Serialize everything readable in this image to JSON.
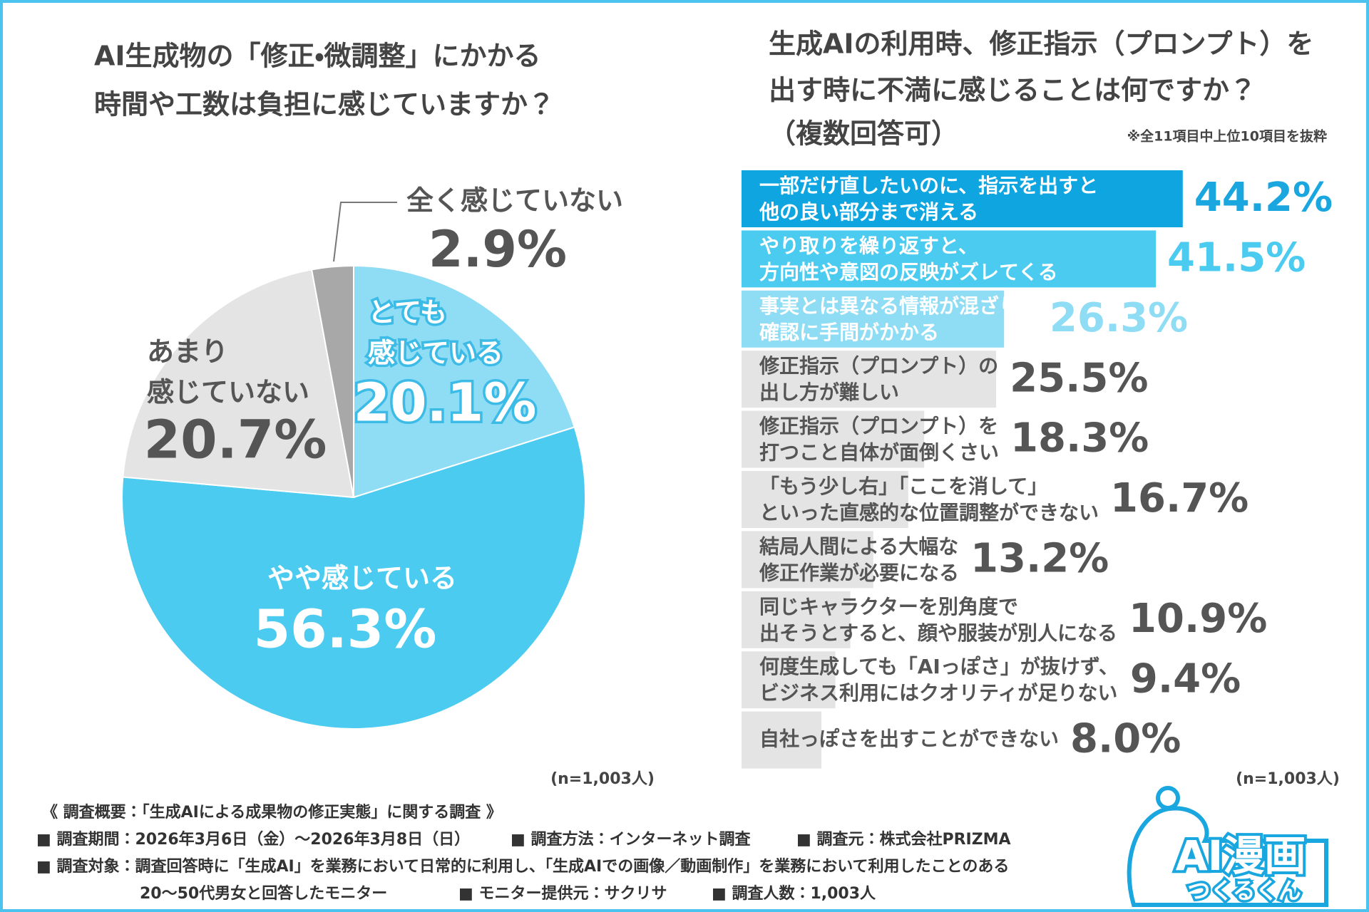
{
  "chart_data": [
    {
      "type": "pie",
      "title": [
        "AI生成物の「修正・微調整」にかかる",
        "時間や工数は負担に感じていますか？"
      ],
      "categories": [
        [
          "とても",
          "感じている"
        ],
        [
          "やや感じている"
        ],
        [
          "あまり",
          "感じていない"
        ],
        [
          "全く感じていない"
        ]
      ],
      "values": [
        20.1,
        56.3,
        20.7,
        2.9
      ],
      "value_labels": [
        "20.1%",
        "56.3%",
        "20.7%",
        "2.9%"
      ],
      "colors": [
        "#8fdcf5",
        "#4ccbf0",
        "#e4e4e4",
        "#a8a8a8"
      ],
      "label_colors": [
        "#ffffff",
        "#ffffff",
        "#555555",
        "#555555"
      ],
      "note": "(n=1,003人)"
    },
    {
      "type": "hbar",
      "title": [
        "生成AIの利用時、修正指示（プロンプト）を",
        "出す時に不満に感じることは何ですか？",
        "（複数回答可）"
      ],
      "subtitle": "※全11項目中上位10項目を抜粋",
      "categories": [
        [
          "一部だけ直したいのに、指示を出すと",
          "他の良い部分まで消える"
        ],
        [
          "やり取りを繰り返すと、",
          "方向性や意図の反映がズレてくる"
        ],
        [
          "事実とは異なる情報が混ざり、",
          "確認に手間がかかる"
        ],
        [
          "修正指示（プロンプト）の",
          "出し方が難しい"
        ],
        [
          "修正指示（プロンプト）を",
          "打つこと自体が面倒くさい"
        ],
        [
          "「もう少し右」「ここを消して」",
          "といった直感的な位置調整ができない"
        ],
        [
          "結局人間による大幅な",
          "修正作業が必要になる"
        ],
        [
          "同じキャラクターを別角度で",
          "出そうとすると、顔や服装が別人になる"
        ],
        [
          "何度生成しても「AIっぽさ」が抜けず、",
          "ビジネス利用にはクオリティが足りない"
        ],
        [
          "自社っぽさを出すことができない"
        ]
      ],
      "values": [
        44.2,
        41.5,
        26.3,
        25.5,
        18.3,
        16.7,
        13.2,
        10.9,
        9.4,
        8.0
      ],
      "value_labels": [
        "44.2%",
        "41.5%",
        "26.3%",
        "25.5%",
        "18.3%",
        "16.7%",
        "13.2%",
        "10.9%",
        "9.4%",
        "8.0%"
      ],
      "colors": [
        "#0ea5e0",
        "#4ccbf0",
        "#8fdcf5",
        "#e4e4e4",
        "#e4e4e4",
        "#e4e4e4",
        "#e4e4e4",
        "#e4e4e4",
        "#e4e4e4",
        "#e4e4e4"
      ],
      "text_colors": [
        "#ffffff",
        "#ffffff",
        "#ffffff",
        "#555555",
        "#555555",
        "#555555",
        "#555555",
        "#555555",
        "#555555",
        "#555555"
      ],
      "value_colors": [
        "#1aa6de",
        "#4ccbf0",
        "#8fdcf5",
        "#555555",
        "#555555",
        "#555555",
        "#555555",
        "#555555",
        "#555555",
        "#555555"
      ],
      "note": "(n=1,003人)"
    }
  ],
  "survey": {
    "heading": "《 調査概要：「生成AIによる成果物の修正実態」に関する調査 》",
    "items": [
      "■ 調査期間：2026年3月6日（金）～2026年3月8日（日）",
      "■ 調査方法：インターネット調査",
      "■ 調査元：株式会社PRIZMA",
      "■ 調査対象：調査回答時に「生成AI」を業務において日常的に利用し、「生成AIでの画像／動画制作」を業務において利用したことのある",
      "20～50代男女と回答したモニター",
      "■ モニター提供元：サクリサ",
      "■ 調査人数：1,003人"
    ]
  },
  "logo": [
    "AI漫画",
    "つくるくん"
  ]
}
